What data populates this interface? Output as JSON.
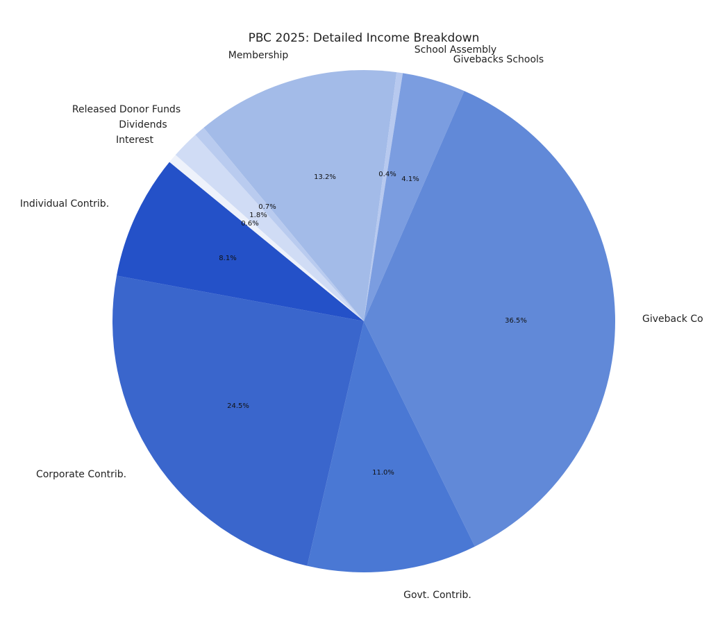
{
  "chart_data": {
    "type": "pie",
    "title": "PBC 2025: Detailed Income Breakdown",
    "categories": [
      "Membership",
      "School Assembly",
      "Givebacks Schools",
      "Giveback Co",
      "Govt. Contrib.",
      "Corporate Contrib.",
      "Individual Contrib.",
      "Interest",
      "Dividends",
      "Released Donor Funds"
    ],
    "values": [
      13.2,
      0.4,
      4.1,
      36.5,
      11.0,
      24.5,
      8.1,
      0.6,
      1.8,
      0.7
    ],
    "value_labels": [
      "13.2%",
      "0.4%",
      "4.1%",
      "36.5%",
      "11.0%",
      "24.5%",
      "8.1%",
      "0.6%",
      "1.8%",
      "0.7%"
    ],
    "colors": [
      "#a3bbe8",
      "#b7c9ef",
      "#7b9de0",
      "#6189d8",
      "#4a78d4",
      "#3a66cc",
      "#2451c8",
      "#eef2fb",
      "#d0dcf5",
      "#b9cbef"
    ]
  }
}
